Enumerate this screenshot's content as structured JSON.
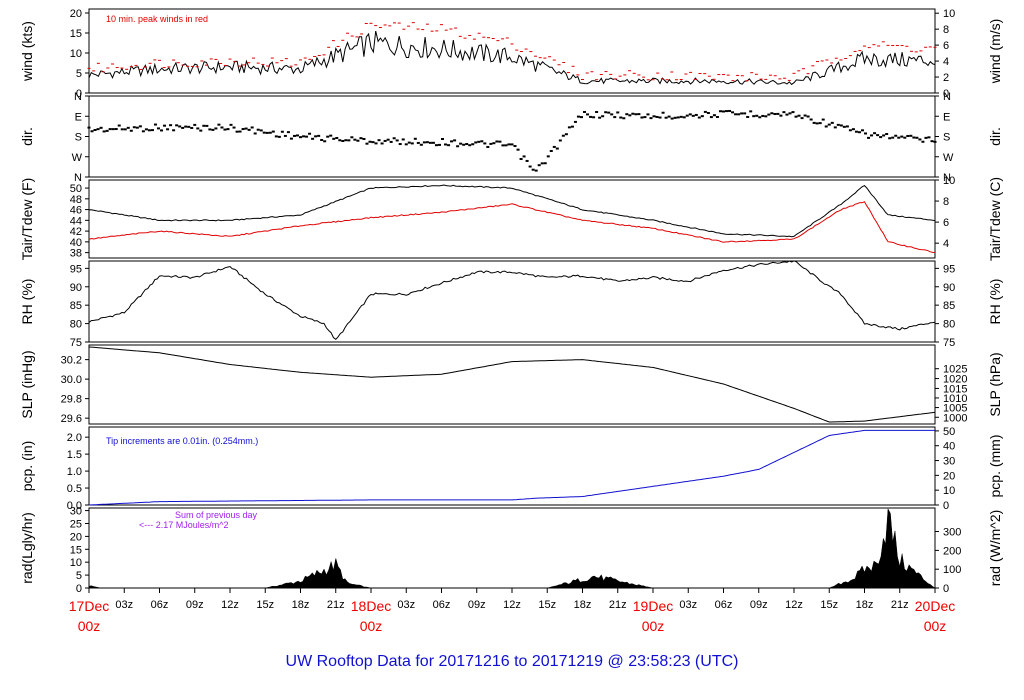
{
  "title": "UW Rooftop Data for 20171216  to  20171219 @ 23:58:23  (UTC)",
  "colors": {
    "black": "#000000",
    "red": "#e00000",
    "blue": "#1010d0",
    "purple": "#a020f0"
  },
  "x_axis": {
    "hour_labels": [
      "03z",
      "06z",
      "09z",
      "12z",
      "15z",
      "18z",
      "21z"
    ],
    "days": [
      {
        "date": "17Dec",
        "time": "00z"
      },
      {
        "date": "18Dec",
        "time": "00z"
      },
      {
        "date": "19Dec",
        "time": "00z"
      },
      {
        "date": "20Dec",
        "time": "00z"
      }
    ]
  },
  "panels": [
    {
      "id": "wind",
      "left_label": "wind (kts)",
      "right_label": "wind (m/s)",
      "left_ticks": [
        "0",
        "5",
        "10",
        "15",
        "20"
      ],
      "right_ticks": [
        "0",
        "2",
        "4",
        "6",
        "8",
        "10"
      ],
      "note": "10 min. peak winds in red"
    },
    {
      "id": "dir",
      "left_label": "dir.",
      "right_label": "dir.",
      "left_ticks": [
        "N",
        "E",
        "S",
        "W",
        "N"
      ],
      "right_ticks": [
        "N",
        "E",
        "S",
        "W",
        "N"
      ]
    },
    {
      "id": "temp",
      "left_label": "Tair/Tdew (F)",
      "right_label": "Tair/Tdew (C)",
      "left_ticks": [
        "38",
        "40",
        "42",
        "44",
        "46",
        "48",
        "50"
      ],
      "right_ticks": [
        "4",
        "6",
        "8",
        "10"
      ]
    },
    {
      "id": "rh",
      "left_label": "RH (%)",
      "right_label": "RH (%)",
      "left_ticks": [
        "75",
        "80",
        "85",
        "90",
        "95"
      ],
      "right_ticks": [
        "75",
        "80",
        "85",
        "90",
        "95"
      ]
    },
    {
      "id": "slp",
      "left_label": "SLP (inHg)",
      "right_label": "SLP (hPa)",
      "left_ticks": [
        "29.6",
        "29.8",
        "30.0",
        "30.2"
      ],
      "right_ticks": [
        "1000",
        "1005",
        "1010",
        "1015",
        "1020",
        "1025"
      ]
    },
    {
      "id": "pcp",
      "left_label": "pcp. (in)",
      "right_label": "pcp. (mm)",
      "left_ticks": [
        "0.0",
        "0.5",
        "1.0",
        "1.5",
        "2.0"
      ],
      "right_ticks": [
        "0",
        "10",
        "20",
        "30",
        "40",
        "50"
      ],
      "note": "Tip increments are 0.01in. (0.254mm.)"
    },
    {
      "id": "rad",
      "left_label": "rad(Lgly/hr)",
      "right_label": "rad (W/m^2)",
      "left_ticks": [
        "0",
        "5",
        "10",
        "15",
        "20",
        "25",
        "30"
      ],
      "right_ticks": [
        "0",
        "100",
        "200",
        "300"
      ],
      "note": "Sum of previous day",
      "note2": "<--- 2.17 MJoules/m^2"
    }
  ],
  "chart_data": [
    {
      "type": "line",
      "xlabel": "",
      "ylabel": "wind (kts)",
      "ylim": [
        0,
        21
      ],
      "x": [
        0,
        6,
        12,
        18,
        24,
        30,
        36,
        42,
        48,
        54,
        60,
        66,
        72
      ],
      "series": [
        {
          "values": [
            4.5,
            6,
            6.5,
            6,
            12.5,
            11,
            9,
            3,
            3,
            3,
            2.5,
            8.5,
            8
          ]
        },
        {
          "values": [
            6,
            7.5,
            8,
            7.5,
            17,
            16,
            12.5,
            4.5,
            4.5,
            4,
            4,
            12,
            11
          ]
        }
      ]
    },
    {
      "type": "scatter",
      "xlabel": "",
      "ylabel": "dir.",
      "ylim": [
        0,
        360
      ],
      "x": [
        0,
        6,
        12,
        18,
        24,
        30,
        36,
        38,
        42,
        48,
        54,
        60,
        66,
        72
      ],
      "series": [
        {
          "values": [
            150,
            140,
            140,
            180,
            200,
            205,
            220,
            340,
            80,
            90,
            80,
            80,
            170,
            200
          ]
        }
      ]
    },
    {
      "type": "line",
      "xlabel": "",
      "ylabel": "Tair/Tdew (F)",
      "ylim": [
        37,
        51.5
      ],
      "x": [
        0,
        6,
        12,
        18,
        24,
        30,
        36,
        42,
        48,
        54,
        60,
        64,
        66,
        68,
        72
      ],
      "series": [
        {
          "values": [
            46,
            44,
            44,
            45,
            50,
            50.5,
            50,
            46,
            44,
            41.5,
            41,
            47,
            50.5,
            45,
            44
          ]
        },
        {
          "values": [
            40.5,
            42,
            41,
            43,
            44.5,
            45.5,
            47,
            44,
            42.5,
            40,
            40.5,
            46,
            47.5,
            40,
            38
          ]
        }
      ]
    },
    {
      "type": "line",
      "xlabel": "",
      "ylabel": "RH (%)",
      "ylim": [
        75,
        97
      ],
      "x": [
        0,
        3,
        6,
        9,
        12,
        15,
        18,
        20,
        21,
        24,
        27,
        30,
        33,
        36,
        39,
        42,
        45,
        48,
        51,
        54,
        57,
        60,
        63,
        64,
        66,
        68,
        69,
        72
      ],
      "series": [
        {
          "values": [
            80.5,
            83,
            93,
            92.5,
            95.5,
            88,
            82,
            80,
            75.5,
            88,
            88,
            91,
            94,
            94,
            92.5,
            93,
            91.5,
            92.5,
            91.5,
            94.5,
            96,
            97,
            90,
            88,
            80,
            79,
            78.5,
            80.5
          ]
        }
      ]
    },
    {
      "type": "line",
      "xlabel": "",
      "ylabel": "SLP (inHg)",
      "ylim": [
        29.54,
        30.35
      ],
      "x": [
        0,
        6,
        12,
        18,
        24,
        30,
        36,
        42,
        48,
        54,
        60,
        63,
        66,
        72
      ],
      "series": [
        {
          "values": [
            30.33,
            30.27,
            30.15,
            30.07,
            30.02,
            30.05,
            30.18,
            30.2,
            30.12,
            29.95,
            29.7,
            29.56,
            29.57,
            29.66
          ]
        }
      ]
    },
    {
      "type": "line",
      "xlabel": "",
      "ylabel": "pcp. (in)",
      "ylim": [
        0,
        2.3
      ],
      "x": [
        0,
        3,
        6,
        24,
        36,
        38,
        42,
        48,
        54,
        57,
        60,
        63,
        66,
        72
      ],
      "series": [
        {
          "values": [
            0.0,
            0.05,
            0.1,
            0.15,
            0.15,
            0.2,
            0.25,
            0.55,
            0.85,
            1.05,
            1.55,
            2.05,
            2.2,
            2.2
          ]
        }
      ]
    },
    {
      "type": "area",
      "xlabel": "",
      "ylabel": "rad(Lgly/hr)",
      "ylim": [
        0,
        31
      ],
      "x": [
        0,
        1,
        15,
        18,
        21,
        22,
        24,
        39,
        43,
        45,
        47,
        48,
        63,
        65,
        66,
        67,
        68,
        69,
        72
      ],
      "series": [
        {
          "values": [
            1,
            0,
            0,
            3,
            10,
            2,
            0,
            0,
            5,
            3,
            1,
            0,
            0,
            4,
            8,
            10,
            30,
            12,
            0
          ]
        }
      ]
    }
  ]
}
